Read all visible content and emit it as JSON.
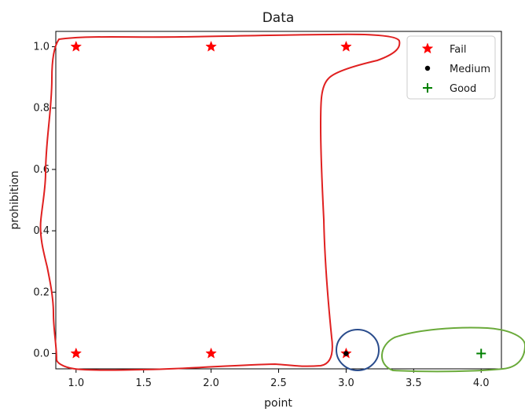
{
  "chart_data": {
    "type": "scatter",
    "title": "Data",
    "xlabel": "point",
    "ylabel": "prohibition",
    "xlim": [
      0.85,
      4.15
    ],
    "ylim": [
      -0.05,
      1.05
    ],
    "x_ticks": [
      1.0,
      1.5,
      2.0,
      2.5,
      3.0,
      3.5,
      4.0
    ],
    "x_tick_labels": [
      "1.0",
      "1.5",
      "2.0",
      "2.5",
      "3.0",
      "3.5",
      "4.0"
    ],
    "y_ticks": [
      0.0,
      0.2,
      0.4,
      0.6,
      0.8,
      1.0
    ],
    "y_tick_labels": [
      "0.0",
      "0.2",
      "0.4",
      "0.6",
      "0.8",
      "1.0"
    ],
    "grid": false,
    "legend_position": "top-right",
    "series": [
      {
        "name": "Fail",
        "marker": "star",
        "color": "#ff0000",
        "points": [
          [
            1,
            1
          ],
          [
            2,
            1
          ],
          [
            3,
            1
          ],
          [
            1,
            0
          ],
          [
            2,
            0
          ],
          [
            3,
            0
          ]
        ]
      },
      {
        "name": "Medium",
        "marker": "dot",
        "color": "#000000",
        "points": [
          [
            3,
            0
          ]
        ]
      },
      {
        "name": "Good",
        "marker": "plus",
        "color": "#008000",
        "points": [
          [
            4,
            0
          ]
        ]
      }
    ],
    "annotations": [
      {
        "shape": "freehand-loop",
        "color": "#e02020",
        "encloses": "Fail"
      },
      {
        "shape": "ellipse",
        "color": "#2a4c8c",
        "encloses": "Medium"
      },
      {
        "shape": "ellipse",
        "color": "#6aaa3a",
        "encloses": "Good"
      }
    ]
  }
}
